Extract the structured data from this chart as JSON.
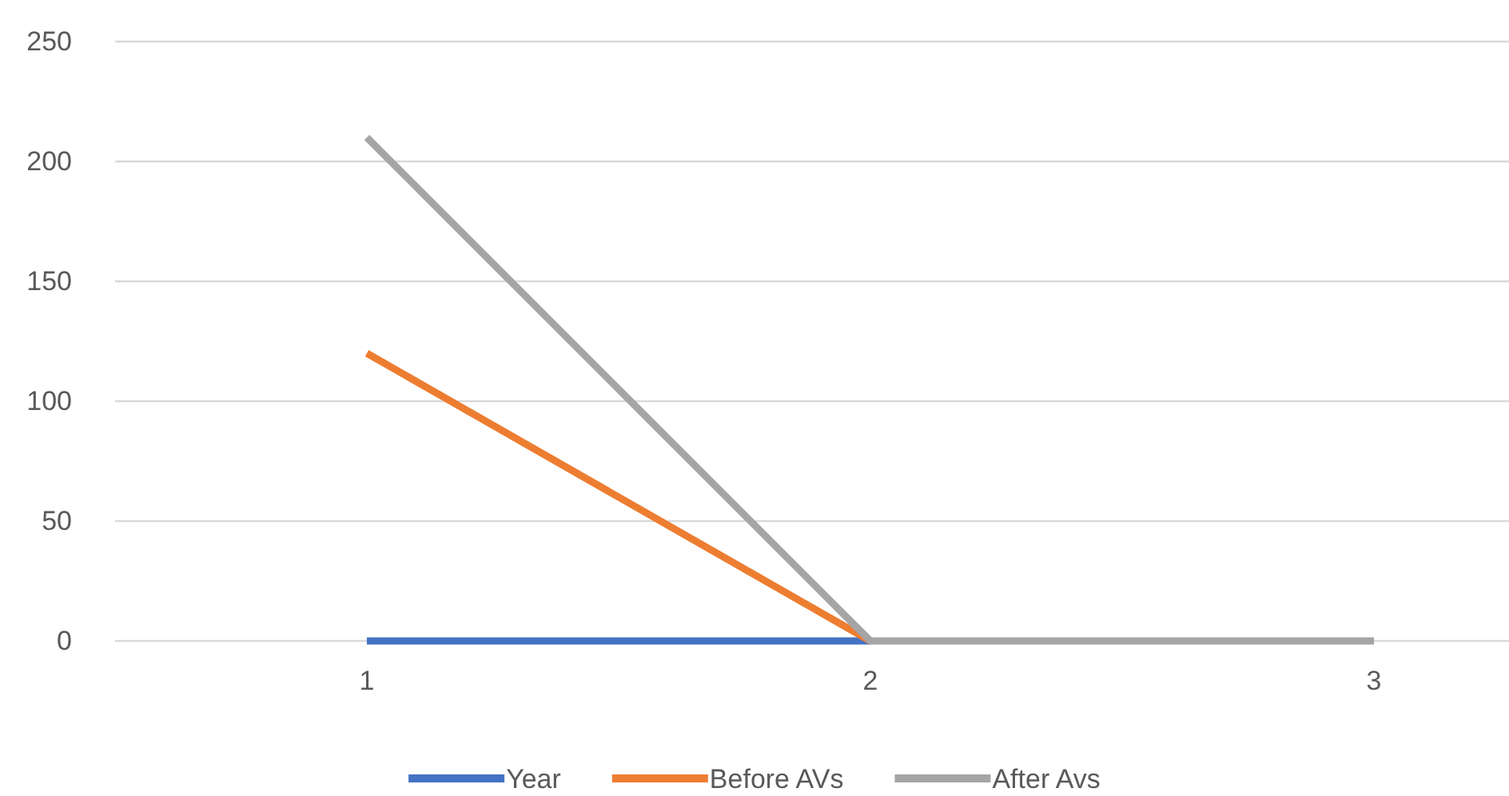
{
  "chart_data": {
    "type": "line",
    "categories": [
      "1",
      "2",
      "3"
    ],
    "series": [
      {
        "name": "Year",
        "color": "#4472c4",
        "values": [
          0,
          0,
          null
        ]
      },
      {
        "name": "Before AVs",
        "color": "#ed7d31",
        "values": [
          120,
          0,
          null
        ]
      },
      {
        "name": "After Avs",
        "color": "#a5a5a5",
        "values": [
          210,
          0,
          0
        ]
      }
    ],
    "ylim": [
      0,
      250
    ],
    "yticks": [
      0,
      50,
      100,
      150,
      200,
      250
    ],
    "grid": "y",
    "legend": "bottom",
    "marker": "none",
    "line_style": "solid"
  }
}
